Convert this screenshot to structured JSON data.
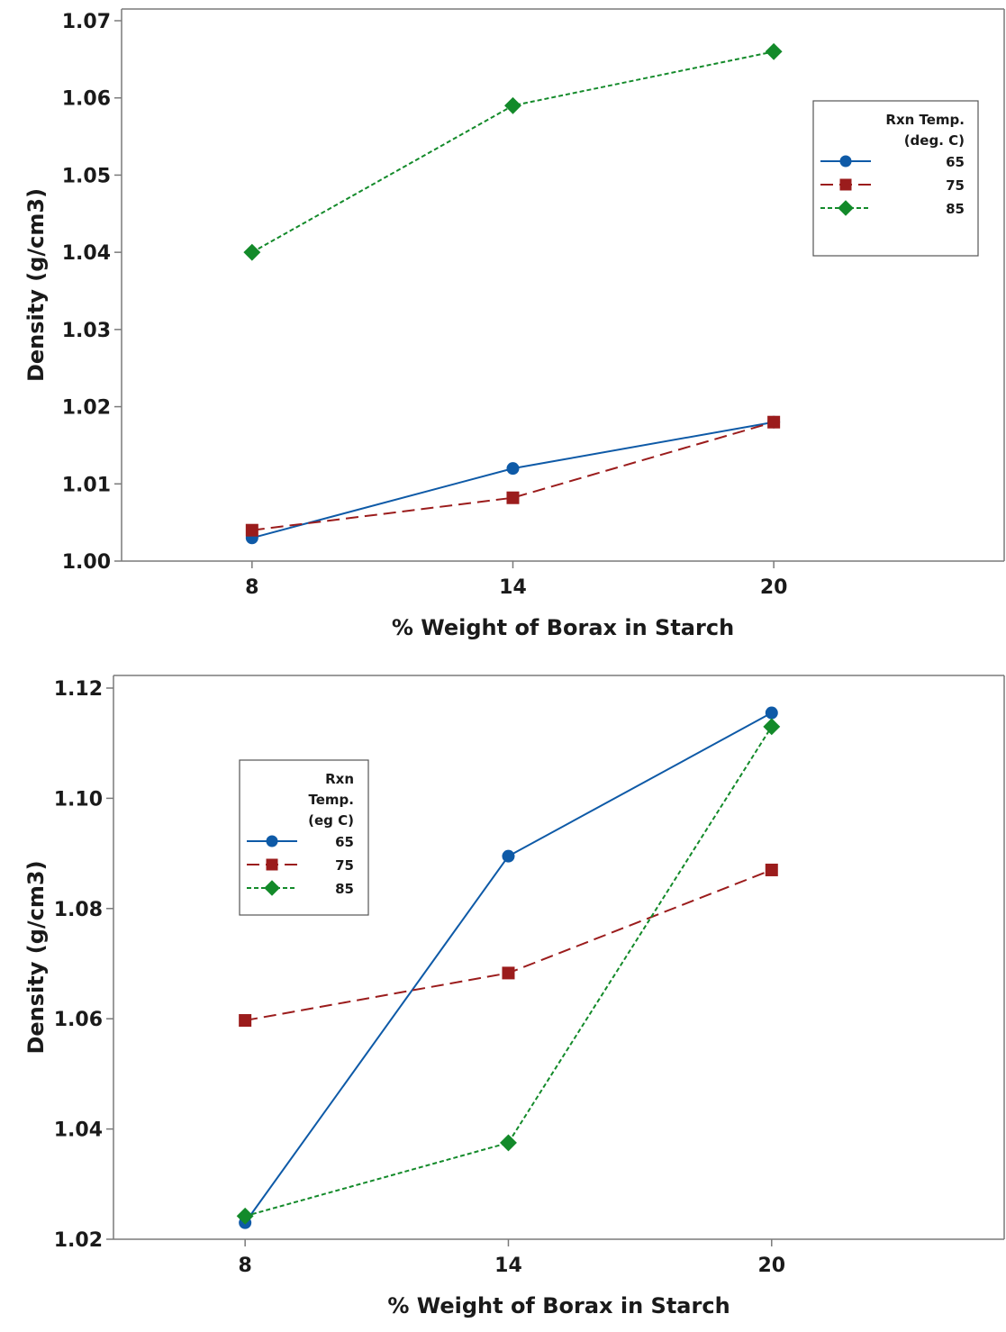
{
  "chart_data": [
    {
      "type": "line",
      "x": [
        8,
        14,
        20
      ],
      "xlabel": "% Weight of Borax in Starch",
      "ylabel": "Density (g/cm3)",
      "xticks": [
        "8",
        "14",
        "20"
      ],
      "yticks": [
        "1.00",
        "1.01",
        "1.02",
        "1.03",
        "1.04",
        "1.05",
        "1.06",
        "1.07"
      ],
      "ylim": [
        1.0,
        1.07
      ],
      "xlim": [
        5,
        25.3
      ],
      "legend": {
        "title_lines": [
          "Rxn Temp.",
          "(deg. C)"
        ],
        "placement": "top-right"
      },
      "series": [
        {
          "name": "65",
          "values": [
            1.003,
            1.012,
            1.018
          ],
          "color": "#0e5aa7",
          "marker": "circle",
          "dash": "solid"
        },
        {
          "name": "75",
          "values": [
            1.004,
            1.0082,
            1.018
          ],
          "color": "#9b1c1c",
          "marker": "square",
          "dash": "dashed"
        },
        {
          "name": "85",
          "values": [
            1.04,
            1.059,
            1.066
          ],
          "color": "#138a2a",
          "marker": "diamond",
          "dash": "dotted"
        }
      ]
    },
    {
      "type": "line",
      "x": [
        8,
        14,
        20
      ],
      "xlabel": "% Weight of Borax in Starch",
      "ylabel": "Density (g/cm3)",
      "xticks": [
        "8",
        "14",
        "20"
      ],
      "yticks": [
        "1.02",
        "1.04",
        "1.06",
        "1.08",
        "1.10",
        "1.12"
      ],
      "ylim": [
        1.02,
        1.12
      ],
      "xlim": [
        5,
        25.3
      ],
      "legend": {
        "title_lines": [
          "Rxn",
          "Temp.",
          "(eg C)"
        ],
        "placement": "top-left"
      },
      "series": [
        {
          "name": "65",
          "values": [
            1.023,
            1.0895,
            1.1155
          ],
          "color": "#0e5aa7",
          "marker": "circle",
          "dash": "solid"
        },
        {
          "name": "75",
          "values": [
            1.0597,
            1.0683,
            1.087
          ],
          "color": "#9b1c1c",
          "marker": "square",
          "dash": "dashed"
        },
        {
          "name": "85",
          "values": [
            1.0242,
            1.0375,
            1.113
          ],
          "color": "#138a2a",
          "marker": "diamond",
          "dash": "dotted"
        }
      ]
    }
  ]
}
